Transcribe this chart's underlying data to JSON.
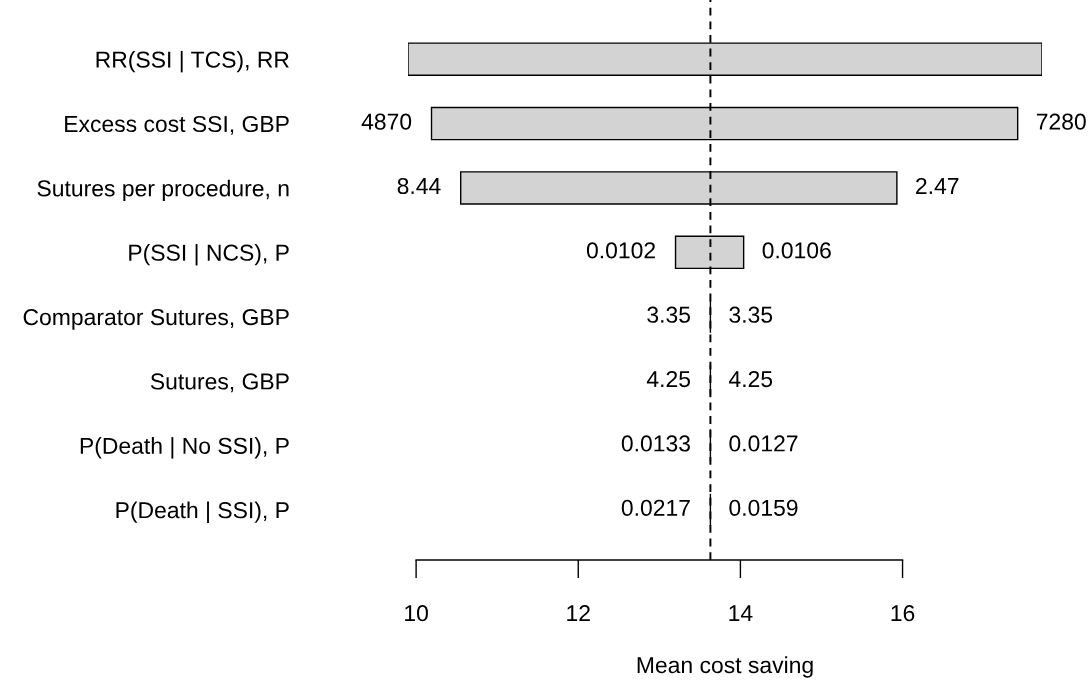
{
  "chart_data": {
    "type": "bar",
    "orientation": "horizontal",
    "categories": [
      "RR(SSI | TCS), RR",
      "Excess cost SSI, GBP",
      "Sutures per procedure, n",
      "P(SSI | NCS), P",
      "Comparator Sutures, GBP",
      "Sutures, GBP",
      "P(Death | No SSI), P",
      "P(Death | SSI), P"
    ],
    "base": [
      9.9,
      10.19,
      10.55,
      13.2,
      13.63,
      13.63,
      13.63,
      13.63
    ],
    "values": [
      7.82,
      7.23,
      5.38,
      0.84,
      0,
      0,
      0,
      0
    ],
    "colors": [
      "#d3d3d3",
      "#d3d3d3",
      "#d3d3d3",
      "#d3d3d3",
      "#000000",
      "#000000",
      "#000000",
      "#000000"
    ],
    "xlim": [
      9.9,
      17.72
    ],
    "xticks": [
      10,
      12,
      14,
      16
    ],
    "xlabel": "Mean cost saving",
    "ref_lines": [
      {
        "axis": "x",
        "value": 13.63,
        "line_style": "dashed",
        "color": "#000000"
      }
    ],
    "annotations": [
      {
        "text": "4870",
        "x": 10.19,
        "y": "Excess cost SSI, GBP"
      },
      {
        "text": "7280",
        "x": 17.42,
        "y": "Excess cost SSI, GBP"
      },
      {
        "text": "8.44",
        "x": 10.55,
        "y": "Sutures per procedure, n"
      },
      {
        "text": "2.47",
        "x": 15.93,
        "y": "Sutures per procedure, n"
      },
      {
        "text": "0.0102",
        "x": 13.2,
        "y": "P(SSI | NCS), P"
      },
      {
        "text": "0.0106",
        "x": 14.04,
        "y": "P(SSI | NCS), P"
      },
      {
        "text": "3.35",
        "x": 13.63,
        "y": "Comparator Sutures, GBP"
      },
      {
        "text": "3.35",
        "x": 13.63,
        "y": "Comparator Sutures, GBP"
      },
      {
        "text": "4.25",
        "x": 13.63,
        "y": "Sutures, GBP"
      },
      {
        "text": "4.25",
        "x": 13.63,
        "y": "Sutures, GBP"
      },
      {
        "text": "0.0133",
        "x": 13.63,
        "y": "P(Death | No SSI), P"
      },
      {
        "text": "0.0127",
        "x": 13.63,
        "y": "P(Death | No SSI), P"
      },
      {
        "text": "0.0217",
        "x": 13.63,
        "y": "P(Death | SSI), P"
      },
      {
        "text": "0.0159",
        "x": 13.63,
        "y": "P(Death | SSI), P"
      }
    ]
  }
}
